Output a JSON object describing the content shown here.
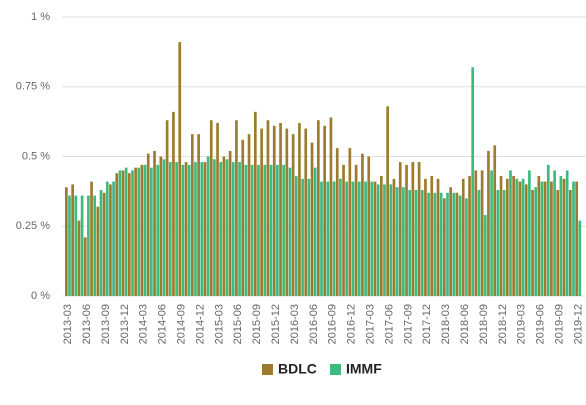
{
  "chart_data": {
    "type": "bar",
    "categories": [
      "2013-03",
      null,
      null,
      "2013-06",
      null,
      null,
      "2013-09",
      null,
      null,
      "2013-12",
      null,
      null,
      "2014-03",
      null,
      null,
      "2014-06",
      null,
      null,
      "2014-09",
      null,
      null,
      "2014-12",
      null,
      null,
      "2015-03",
      null,
      null,
      "2015-06",
      null,
      null,
      "2015-09",
      null,
      null,
      "2015-12",
      null,
      null,
      "2016-03",
      null,
      null,
      "2016-06",
      null,
      null,
      "2016-09",
      null,
      null,
      "2016-12",
      null,
      null,
      "2017-03",
      null,
      null,
      "2017-06",
      null,
      null,
      "2017-09",
      null,
      null,
      "2017-12",
      null,
      null,
      "2018-03",
      null,
      null,
      "2018-06",
      null,
      null,
      "2018-09",
      null,
      null,
      "2018-12",
      null,
      null,
      "2019-03",
      null,
      null,
      "2019-06",
      null,
      null,
      "2019-09",
      null,
      null,
      "2019-12"
    ],
    "series": [
      {
        "name": "BDLC",
        "color": "#9c7b2e",
        "values": [
          0.39,
          0.4,
          0.27,
          0.21,
          0.41,
          0.32,
          0.37,
          0.4,
          0.44,
          0.45,
          0.44,
          0.46,
          0.47,
          0.51,
          0.52,
          0.5,
          0.63,
          0.66,
          0.91,
          0.48,
          0.58,
          0.58,
          0.48,
          0.63,
          0.62,
          0.5,
          0.52,
          0.63,
          0.56,
          0.58,
          0.66,
          0.6,
          0.63,
          0.61,
          0.62,
          0.6,
          0.58,
          0.62,
          0.6,
          0.55,
          0.63,
          0.61,
          0.64,
          0.53,
          0.47,
          0.53,
          0.47,
          0.51,
          0.5,
          0.41,
          0.43,
          0.68,
          0.42,
          0.48,
          0.47,
          0.48,
          0.48,
          0.42,
          0.43,
          0.42,
          0.35,
          0.39,
          0.37,
          0.42,
          0.43,
          0.45,
          0.45,
          0.52,
          0.54,
          0.43,
          0.42,
          0.43,
          0.41,
          0.4,
          0.38,
          0.43,
          0.41,
          0.41,
          0.38,
          0.42,
          0.38,
          0.41
        ]
      },
      {
        "name": "IMMF",
        "color": "#3dba7e",
        "values": [
          0.36,
          0.36,
          0.36,
          0.36,
          0.36,
          0.38,
          0.41,
          0.41,
          0.45,
          0.46,
          0.45,
          0.46,
          0.47,
          0.46,
          0.47,
          0.49,
          0.48,
          0.48,
          0.47,
          0.47,
          0.48,
          0.48,
          0.5,
          0.49,
          0.48,
          0.49,
          0.48,
          0.48,
          0.47,
          0.47,
          0.47,
          0.47,
          0.47,
          0.47,
          0.47,
          0.46,
          0.43,
          0.42,
          0.42,
          0.46,
          0.41,
          0.41,
          0.41,
          0.42,
          0.41,
          0.41,
          0.41,
          0.41,
          0.41,
          0.4,
          0.4,
          0.4,
          0.39,
          0.39,
          0.38,
          0.38,
          0.38,
          0.37,
          0.37,
          0.37,
          0.37,
          0.37,
          0.36,
          0.35,
          0.82,
          0.38,
          0.29,
          0.45,
          0.38,
          0.38,
          0.45,
          0.42,
          0.42,
          0.45,
          0.39,
          0.41,
          0.47,
          0.45,
          0.43,
          0.45,
          0.41,
          0.27
        ]
      }
    ],
    "ylim": [
      0,
      1
    ],
    "yticks": [
      {
        "value": 0,
        "label": "0 %"
      },
      {
        "value": 0.25,
        "label": "0.25 %"
      },
      {
        "value": 0.5,
        "label": "0.5 %"
      },
      {
        "value": 0.75,
        "label": "0.75 %"
      },
      {
        "value": 1,
        "label": "1 %"
      }
    ],
    "grid": true
  }
}
